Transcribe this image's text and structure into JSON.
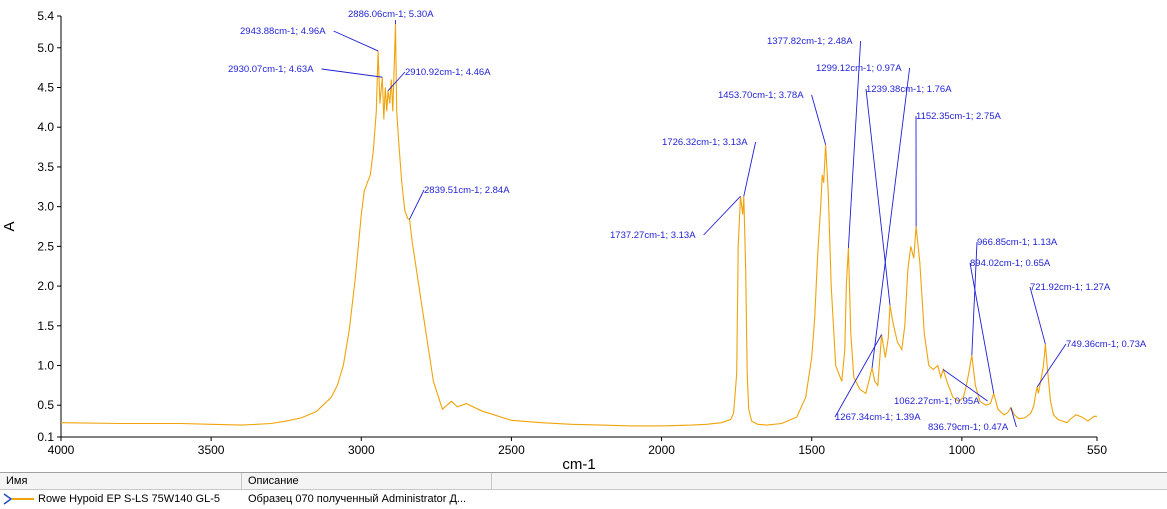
{
  "chart_data": {
    "type": "line",
    "xlabel": "cm-1",
    "ylabel": "A",
    "xlim": [
      4000,
      550
    ],
    "ylim": [
      0.1,
      5.4
    ],
    "x_reversed": true,
    "x_ticks": [
      "4000",
      "3500",
      "3000",
      "2500",
      "2000",
      "1500",
      "1000",
      "550"
    ],
    "x_tick_values": [
      4000,
      3500,
      3000,
      2500,
      2000,
      1500,
      1000,
      550
    ],
    "y_ticks": [
      "5.4",
      "5.0",
      "4.5",
      "4.0",
      "3.5",
      "3.0",
      "2.5",
      "2.0",
      "1.5",
      "1.0",
      "0.5",
      "0.1"
    ],
    "y_tick_values": [
      5.4,
      5.0,
      4.5,
      4.0,
      3.5,
      3.0,
      2.5,
      2.0,
      1.5,
      1.0,
      0.5,
      0.1
    ],
    "grid": false,
    "series_color": "#f0a30a",
    "annotation_color": "#1f1fd6",
    "series": [
      {
        "name": "Rowe Hypoid EP S-LS 75W140 GL-5",
        "x": [
          4000,
          3800,
          3600,
          3500,
          3400,
          3300,
          3250,
          3200,
          3150,
          3100,
          3080,
          3060,
          3040,
          3020,
          3000,
          2990,
          2980,
          2970,
          2960,
          2950,
          2943.88,
          2938,
          2930.07,
          2925,
          2920,
          2915,
          2910.92,
          2905,
          2900,
          2895,
          2890,
          2886.06,
          2882,
          2875,
          2865,
          2855,
          2845,
          2839.51,
          2830,
          2800,
          2760,
          2730,
          2700,
          2680,
          2650,
          2600,
          2500,
          2400,
          2300,
          2200,
          2100,
          2000,
          1900,
          1850,
          1800,
          1770,
          1760,
          1750,
          1745,
          1737.27,
          1730,
          1726.32,
          1720,
          1715,
          1710,
          1700,
          1680,
          1650,
          1600,
          1550,
          1520,
          1500,
          1490,
          1480,
          1470,
          1465,
          1460,
          1453.7,
          1445,
          1435,
          1420,
          1400,
          1390,
          1385,
          1377.82,
          1370,
          1360,
          1340,
          1320,
          1310,
          1299.12,
          1290,
          1280,
          1267.34,
          1255,
          1245,
          1239.38,
          1230,
          1215,
          1200,
          1190,
          1180,
          1170,
          1160,
          1152.35,
          1140,
          1125,
          1110,
          1095,
          1080,
          1070,
          1062.27,
          1050,
          1030,
          1010,
          995,
          985,
          975,
          966.85,
          955,
          940,
          920,
          905,
          894.02,
          880,
          860,
          850,
          845,
          836.79,
          825,
          810,
          790,
          770,
          760,
          755,
          749.36,
          745,
          735,
          728,
          721.92,
          715,
          705,
          695,
          680,
          665,
          650,
          640,
          620,
          600,
          580,
          560,
          550
        ],
        "y": [
          0.28,
          0.27,
          0.27,
          0.26,
          0.25,
          0.27,
          0.3,
          0.34,
          0.42,
          0.6,
          0.75,
          1.0,
          1.45,
          2.1,
          2.9,
          3.2,
          3.3,
          3.4,
          3.7,
          4.2,
          4.96,
          4.3,
          4.63,
          4.1,
          4.5,
          4.2,
          4.46,
          4.3,
          4.6,
          4.2,
          4.8,
          5.3,
          4.2,
          3.8,
          3.3,
          2.95,
          2.85,
          2.84,
          2.55,
          1.8,
          0.8,
          0.45,
          0.55,
          0.48,
          0.52,
          0.43,
          0.31,
          0.28,
          0.26,
          0.25,
          0.24,
          0.24,
          0.25,
          0.26,
          0.28,
          0.32,
          0.4,
          0.9,
          2.5,
          3.13,
          2.9,
          3.13,
          2.2,
          0.9,
          0.45,
          0.3,
          0.26,
          0.25,
          0.27,
          0.35,
          0.6,
          1.1,
          1.6,
          2.4,
          3.0,
          3.4,
          3.3,
          3.78,
          3.2,
          2.0,
          1.0,
          0.8,
          1.2,
          2.0,
          2.48,
          1.4,
          0.85,
          0.7,
          0.65,
          0.8,
          0.97,
          0.8,
          0.75,
          1.39,
          1.1,
          1.35,
          1.76,
          1.55,
          1.3,
          1.2,
          1.5,
          2.2,
          2.5,
          2.35,
          2.75,
          2.3,
          1.4,
          1.0,
          0.95,
          1.0,
          0.85,
          0.95,
          0.8,
          0.6,
          0.55,
          0.6,
          0.75,
          0.95,
          1.13,
          0.75,
          0.55,
          0.5,
          0.52,
          0.65,
          0.45,
          0.38,
          0.4,
          0.42,
          0.47,
          0.38,
          0.33,
          0.34,
          0.4,
          0.5,
          0.62,
          0.73,
          0.65,
          0.85,
          1.0,
          1.27,
          0.95,
          0.55,
          0.38,
          0.32,
          0.3,
          0.28,
          0.32,
          0.38,
          0.35,
          0.3,
          0.36,
          0.36
        ]
      }
    ],
    "annotations": [
      {
        "label": "2886.06cm-1; 5.30A",
        "x": 2886.06,
        "y": 5.3
      },
      {
        "label": "2943.88cm-1; 4.96A",
        "x": 2943.88,
        "y": 4.96
      },
      {
        "label": "2930.07cm-1; 4.63A",
        "x": 2930.07,
        "y": 4.63
      },
      {
        "label": "2910.92cm-1; 4.46A",
        "x": 2910.92,
        "y": 4.46
      },
      {
        "label": "2839.51cm-1; 2.84A",
        "x": 2839.51,
        "y": 2.84
      },
      {
        "label": "1737.27cm-1; 3.13A",
        "x": 1737.27,
        "y": 3.13
      },
      {
        "label": "1726.32cm-1; 3.13A",
        "x": 1726.32,
        "y": 3.13
      },
      {
        "label": "1453.70cm-1; 3.78A",
        "x": 1453.7,
        "y": 3.78
      },
      {
        "label": "1377.82cm-1; 2.48A",
        "x": 1377.82,
        "y": 2.48
      },
      {
        "label": "1299.12cm-1; 0.97A",
        "x": 1299.12,
        "y": 0.97
      },
      {
        "label": "1267.34cm-1; 1.39A",
        "x": 1267.34,
        "y": 1.39
      },
      {
        "label": "1239.38cm-1; 1.76A",
        "x": 1239.38,
        "y": 1.76
      },
      {
        "label": "1152.35cm-1; 2.75A",
        "x": 1152.35,
        "y": 2.75
      },
      {
        "label": "1062.27cm-1; 0.95A",
        "x": 1062.27,
        "y": 0.95
      },
      {
        "label": "966.85cm-1; 1.13A",
        "x": 966.85,
        "y": 1.13
      },
      {
        "label": "894.02cm-1; 0.65A",
        "x": 894.02,
        "y": 0.65
      },
      {
        "label": "836.79cm-1; 0.47A",
        "x": 836.79,
        "y": 0.47
      },
      {
        "label": "721.92cm-1; 1.27A",
        "x": 721.92,
        "y": 1.27
      },
      {
        "label": "749.36cm-1; 0.73A",
        "x": 749.36,
        "y": 0.73
      }
    ]
  },
  "legend_table": {
    "columns": [
      "Имя",
      "Описание"
    ],
    "rows": [
      {
        "name": "Rowe Hypoid EP S-LS 75W140 GL-5",
        "description": "Образец 070 полученный Administrator Д..."
      }
    ]
  }
}
